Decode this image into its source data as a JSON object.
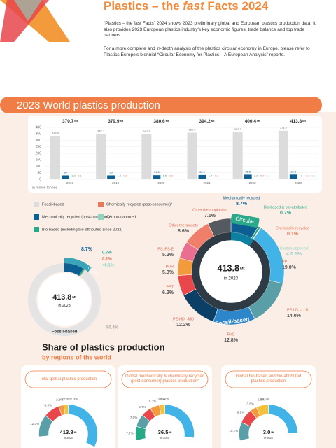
{
  "header": {
    "title_pre": "Plastics – the ",
    "title_em": "fast",
    "title_post": " Facts 2024",
    "paragraphs": [
      "“Plastics – the fast Facts” 2024 shows 2023 preliminary global and European plastics production data. It also provides 2023 European plastics industry's key economic figures, trade balance and top trade partners.",
      "For a more complete and in-depth analysis of the plastics circular economy in Europe, please refer to Plastics Europe's biennial “Circular Economy for Plastics – A European Analysis” reports."
    ]
  },
  "section_title": "2023 World plastics production",
  "unit": "Mt",
  "bar_chart": {
    "years": [
      "2018",
      "2019",
      "2020",
      "2021",
      "2022",
      "2023"
    ],
    "totals": [
      370.7,
      379.9,
      380.6,
      394.2,
      400.4,
      413.8
    ],
    "ylim": [
      0,
      400
    ],
    "yticks": [
      0,
      50,
      100,
      150,
      200,
      250,
      300,
      350,
      400
    ],
    "axis_note": "in million tonnes",
    "series": [
      {
        "name": "Fossil-based",
        "color": "#dcdcdc",
        "values": [
          335.4,
          347.7,
          347.3,
          359.3,
          362.3,
          374.2
        ]
      },
      {
        "name": "Mechanically recycled (post-consumer)²",
        "color": "#0d5f91",
        "values": [
          30,
          30.0,
          31.6,
          32.9,
          35.5,
          36.2
        ]
      },
      {
        "name": "Bio-based (including bio-attributed since 2022)",
        "color": "#2aa88a",
        "values": [
          1.2,
          1.2,
          1.5,
          1.7,
          2.3,
          3
        ]
      },
      {
        "name": "Chemically recycled (post-consumer)³",
        "color": "#e8785a",
        "values": [
          0.1,
          0.1,
          0.2,
          0.2,
          0.2,
          0.2
        ]
      },
      {
        "name": "Carbon-captured",
        "color": "#8fd3c3",
        "values": [
          null,
          null,
          null,
          null,
          0.1,
          0.1
        ]
      }
    ]
  },
  "circular_donut": {
    "total": "413.8",
    "year_label": "in 2023",
    "circular_label": "Circular",
    "fossil_label": "Fossil-based",
    "slices": [
      {
        "value": 8.7,
        "value_label": "8.7%",
        "color": "#0d5f91"
      },
      {
        "value": 0.7,
        "value_label": "0.7%",
        "color": "#2aa88a"
      },
      {
        "value": 0.1,
        "value_label": "0.1%",
        "color": "#e8785a"
      },
      {
        "value": 0.1,
        "value_label": "<0.1%",
        "color": "#8fd3c3"
      },
      {
        "value": 90.4,
        "value_label": "90.4%",
        "color": "#e4e4e4"
      }
    ]
  },
  "polymer_donut": {
    "total": "413.8",
    "year_label": "in 2023",
    "circular_label": "Circular",
    "fossil_label": "Fossil-based",
    "slices": [
      {
        "name": "Mechanically recycled",
        "value": 8.7,
        "value_label": "8.7%",
        "color": "#0d5f91",
        "circular": true
      },
      {
        "name": "Bio-based & bio-attributed",
        "value": 0.7,
        "value_label": "0.7%",
        "color": "#2aa88a",
        "circular": true
      },
      {
        "name": "Chemically recycled",
        "value": 0.1,
        "value_label": "0.1%",
        "color": "#e8785a",
        "circular": true
      },
      {
        "name": "Carbon-captured",
        "value": 0.1,
        "value_label": "< 0.1%",
        "color": "#8fd3c3",
        "circular": true
      },
      {
        "name": "PP",
        "value": 19.0,
        "value_label": "19.0%",
        "color": "#41b3e6",
        "circular": false
      },
      {
        "name": "PE-LD, -LLD",
        "value": 14.0,
        "value_label": "14.0%",
        "color": "#5a9fa8",
        "circular": false
      },
      {
        "name": "PVC",
        "value": 12.8,
        "value_label": "12.8%",
        "color": "#2c86c9",
        "circular": false
      },
      {
        "name": "PE-HD, -MD",
        "value": 12.2,
        "value_label": "12.2%",
        "color": "#0b3f66",
        "circular": false
      },
      {
        "name": "PET",
        "value": 6.2,
        "value_label": "6.2%",
        "color": "#e8474b",
        "circular": false
      },
      {
        "name": "PUR",
        "value": 5.3,
        "value_label": "5.3%",
        "color": "#f39a3c",
        "circular": false
      },
      {
        "name": "PS, PS-E",
        "value": 5.2,
        "value_label": "5.2%",
        "color": "#e96e90",
        "circular": false
      },
      {
        "name": "Other thermosets",
        "value": 8.6,
        "value_label": "8.6%",
        "color": "#f07f6a",
        "circular": false
      },
      {
        "name": "Other thermoplastics",
        "value": 7.1,
        "value_label": "7.1%",
        "color": "#555a60",
        "circular": false
      }
    ]
  },
  "regions": {
    "title": "Share of plastics production",
    "subtitle": "by regions of the world",
    "cards": [
      {
        "label": "Total global plastics production",
        "total": "413.8",
        "year_label": "in 2023",
        "right": [
          32.3
        ],
        "right_labels": [
          "32.3%"
        ],
        "left": [
          2.5,
          2.8,
          8.9,
          12.3
        ],
        "left_labels": [
          "2.5%",
          "2.8%",
          "8.9%",
          "12.3%"
        ]
      },
      {
        "label": "Global mechanically & chemically recycled (post-consumer) plastics production²",
        "total": "36.5",
        "year_label": "in 2023",
        "right": [
          27.2
        ],
        "right_labels": [
          "27.2%"
        ],
        "left": [
          3.1,
          5.1,
          5.7,
          7.0,
          7.7
        ],
        "left_labels": [
          "3.1%",
          "5.1%",
          "5.7%",
          "7.0%",
          "7.7%"
        ]
      },
      {
        "label": "Global bio-based and bio-attributed plastics production",
        "total": "3.0",
        "year_label": "in 2023",
        "right": [
          24.5
        ],
        "right_labels": [
          "24.5%"
        ],
        "left": [
          6.8,
          3.6,
          8.2,
          10.1
        ],
        "left_labels": [
          "6.8%",
          "3.6%",
          "8.2%",
          "10.1%"
        ]
      }
    ],
    "right_colors": [
      "#41b3e6"
    ],
    "left_colors": [
      "#f3c13c",
      "#f39a3c",
      "#e8474b",
      "#5a9fa8",
      "#2aa88a"
    ]
  }
}
